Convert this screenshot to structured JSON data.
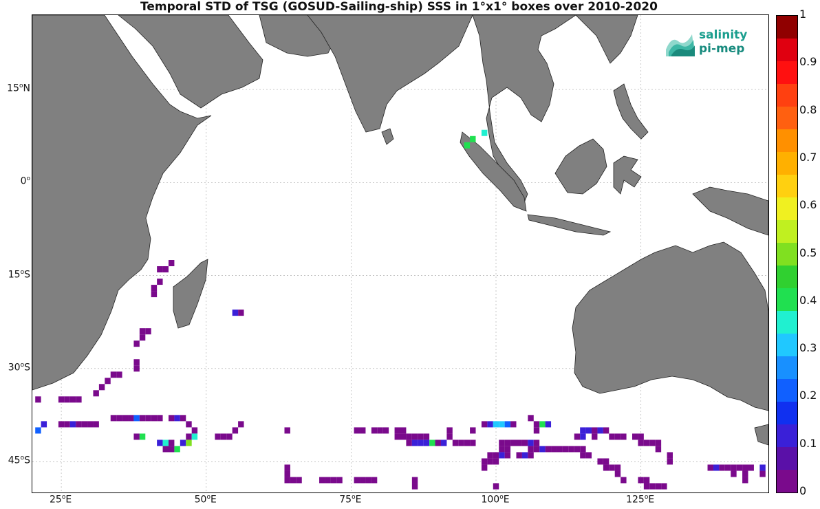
{
  "title": "Temporal STD of TSG (GOSUD-Sailing-ship) SSS in 1°x1° boxes over 2010-2020",
  "logo": {
    "line1": "salinity",
    "line2": "pi-mep"
  },
  "lat_labels": [
    {
      "deg": "15",
      "hemi": "N",
      "lat": 15
    },
    {
      "deg": "0",
      "hemi": "",
      "lat": 0
    },
    {
      "deg": "15",
      "hemi": "S",
      "lat": -15
    },
    {
      "deg": "30",
      "hemi": "S",
      "lat": -30
    },
    {
      "deg": "45",
      "hemi": "S",
      "lat": -45
    }
  ],
  "lon_labels": [
    {
      "deg": "25",
      "hemi": "E",
      "lon": 25
    },
    {
      "deg": "50",
      "hemi": "E",
      "lon": 50
    },
    {
      "deg": "75",
      "hemi": "E",
      "lon": 75
    },
    {
      "deg": "100",
      "hemi": "E",
      "lon": 100
    },
    {
      "deg": "125",
      "hemi": "E",
      "lon": 125
    }
  ],
  "extent": {
    "lon_min": 20,
    "lon_max": 147,
    "lat_min": -50,
    "lat_max": 27
  },
  "colorbar": {
    "min": 0,
    "max": 1,
    "ticks": [
      "0",
      "0.1",
      "0.2",
      "0.3",
      "0.4",
      "0.5",
      "0.6",
      "0.7",
      "0.8",
      "0.9",
      "1"
    ],
    "colors": [
      "#7a0a8c",
      "#5a10a8",
      "#3a20d8",
      "#1030f0",
      "#1060ff",
      "#1890ff",
      "#20c8ff",
      "#20f0d0",
      "#20e050",
      "#30d030",
      "#80e020",
      "#c0f020",
      "#f0f020",
      "#ffd010",
      "#ffb000",
      "#ff9000",
      "#ff6010",
      "#ff4010",
      "#ff1010",
      "#e00010",
      "#900000"
    ]
  },
  "land_color": "#808080",
  "cells": [
    {
      "lat": -14,
      "lon": 42,
      "v": 0.02
    },
    {
      "lat": -14,
      "lon": 43,
      "v": 0.02
    },
    {
      "lat": -13,
      "lon": 44,
      "v": 0.02
    },
    {
      "lat": -17,
      "lon": 41,
      "v": 0.02
    },
    {
      "lat": -16,
      "lon": 42,
      "v": 0.02
    },
    {
      "lat": -18,
      "lon": 41,
      "v": 0.02
    },
    {
      "lat": -21,
      "lon": 56,
      "v": 0.02
    },
    {
      "lat": -21,
      "lon": 55,
      "v": 0.12
    },
    {
      "lat": -24,
      "lon": 39,
      "v": 0.02
    },
    {
      "lat": -24,
      "lon": 40,
      "v": 0.02
    },
    {
      "lat": -25,
      "lon": 39,
      "v": 0.02
    },
    {
      "lat": -26,
      "lon": 38,
      "v": 0.02
    },
    {
      "lat": -29,
      "lon": 38,
      "v": 0.02
    },
    {
      "lat": -30,
      "lon": 38,
      "v": 0.02
    },
    {
      "lat": -31,
      "lon": 35,
      "v": 0.02
    },
    {
      "lat": -31,
      "lon": 34,
      "v": 0.02
    },
    {
      "lat": -32,
      "lon": 33,
      "v": 0.02
    },
    {
      "lat": -33,
      "lon": 32,
      "v": 0.02
    },
    {
      "lat": -34,
      "lon": 31,
      "v": 0.02
    },
    {
      "lat": -35,
      "lon": 21,
      "v": 0.02
    },
    {
      "lat": -35,
      "lon": 25,
      "v": 0.02
    },
    {
      "lat": -35,
      "lon": 26,
      "v": 0.02
    },
    {
      "lat": -35,
      "lon": 27,
      "v": 0.02
    },
    {
      "lat": -35,
      "lon": 28,
      "v": 0.02
    },
    {
      "lat": -38,
      "lon": 34,
      "v": 0.02
    },
    {
      "lat": -38,
      "lon": 35,
      "v": 0.02
    },
    {
      "lat": -38,
      "lon": 36,
      "v": 0.02
    },
    {
      "lat": -38,
      "lon": 37,
      "v": 0.02
    },
    {
      "lat": -38,
      "lon": 38,
      "v": 0.2
    },
    {
      "lat": -38,
      "lon": 39,
      "v": 0.02
    },
    {
      "lat": -38,
      "lon": 40,
      "v": 0.02
    },
    {
      "lat": -38,
      "lon": 41,
      "v": 0.02
    },
    {
      "lat": -38,
      "lon": 42,
      "v": 0.02
    },
    {
      "lat": -38,
      "lon": 44,
      "v": 0.02
    },
    {
      "lat": -38,
      "lon": 45,
      "v": 0.12
    },
    {
      "lat": -38,
      "lon": 46,
      "v": 0.02
    },
    {
      "lat": -39,
      "lon": 22,
      "v": 0.12
    },
    {
      "lat": -39,
      "lon": 25,
      "v": 0.02
    },
    {
      "lat": -39,
      "lon": 26,
      "v": 0.02
    },
    {
      "lat": -39,
      "lon": 27,
      "v": 0.12
    },
    {
      "lat": -39,
      "lon": 28,
      "v": 0.02
    },
    {
      "lat": -39,
      "lon": 29,
      "v": 0.02
    },
    {
      "lat": -39,
      "lon": 30,
      "v": 0.02
    },
    {
      "lat": -39,
      "lon": 31,
      "v": 0.02
    },
    {
      "lat": -39,
      "lon": 47,
      "v": 0.02
    },
    {
      "lat": -39,
      "lon": 56,
      "v": 0.02
    },
    {
      "lat": -40,
      "lon": 21,
      "v": 0.2
    },
    {
      "lat": -40,
      "lon": 48,
      "v": 0.02
    },
    {
      "lat": -40,
      "lon": 55,
      "v": 0.02
    },
    {
      "lat": -40,
      "lon": 64,
      "v": 0.02
    },
    {
      "lat": -41,
      "lon": 38,
      "v": 0.02
    },
    {
      "lat": -41,
      "lon": 39,
      "v": 0.4
    },
    {
      "lat": -41,
      "lon": 47,
      "v": 0.02
    },
    {
      "lat": -41,
      "lon": 48,
      "v": 0.35
    },
    {
      "lat": -41,
      "lon": 52,
      "v": 0.02
    },
    {
      "lat": -41,
      "lon": 53,
      "v": 0.02
    },
    {
      "lat": -41,
      "lon": 54,
      "v": 0.02
    },
    {
      "lat": -42,
      "lon": 42,
      "v": 0.12
    },
    {
      "lat": -42,
      "lon": 43,
      "v": 0.35
    },
    {
      "lat": -42,
      "lon": 44,
      "v": 0.02
    },
    {
      "lat": -42,
      "lon": 46,
      "v": 0.12
    },
    {
      "lat": -42,
      "lon": 47,
      "v": 0.5
    },
    {
      "lat": -43,
      "lon": 43,
      "v": 0.02
    },
    {
      "lat": -43,
      "lon": 44,
      "v": 0.02
    },
    {
      "lat": -43,
      "lon": 45,
      "v": 0.4
    },
    {
      "lat": -40,
      "lon": 76,
      "v": 0.02
    },
    {
      "lat": -40,
      "lon": 77,
      "v": 0.02
    },
    {
      "lat": -40,
      "lon": 79,
      "v": 0.02
    },
    {
      "lat": -40,
      "lon": 80,
      "v": 0.02
    },
    {
      "lat": -40,
      "lon": 81,
      "v": 0.02
    },
    {
      "lat": -40,
      "lon": 83,
      "v": 0.02
    },
    {
      "lat": -40,
      "lon": 84,
      "v": 0.02
    },
    {
      "lat": -40,
      "lon": 92,
      "v": 0.02
    },
    {
      "lat": -40,
      "lon": 96,
      "v": 0.02
    },
    {
      "lat": -41,
      "lon": 92,
      "v": 0.02
    },
    {
      "lat": -39,
      "lon": 98,
      "v": 0.02
    },
    {
      "lat": -39,
      "lon": 99,
      "v": 0.12
    },
    {
      "lat": -39,
      "lon": 100,
      "v": 0.3
    },
    {
      "lat": -39,
      "lon": 101,
      "v": 0.3
    },
    {
      "lat": -39,
      "lon": 102,
      "v": 0.2
    },
    {
      "lat": -39,
      "lon": 103,
      "v": 0.02
    },
    {
      "lat": -38,
      "lon": 106,
      "v": 0.02
    },
    {
      "lat": -39,
      "lon": 107,
      "v": 0.02
    },
    {
      "lat": -39,
      "lon": 108,
      "v": 0.4
    },
    {
      "lat": -39,
      "lon": 109,
      "v": 0.12
    },
    {
      "lat": -40,
      "lon": 107,
      "v": 0.02
    },
    {
      "lat": -41,
      "lon": 83,
      "v": 0.02
    },
    {
      "lat": -41,
      "lon": 84,
      "v": 0.02
    },
    {
      "lat": -41,
      "lon": 85,
      "v": 0.02
    },
    {
      "lat": -41,
      "lon": 86,
      "v": 0.02
    },
    {
      "lat": -41,
      "lon": 87,
      "v": 0.02
    },
    {
      "lat": -41,
      "lon": 88,
      "v": 0.02
    },
    {
      "lat": -42,
      "lon": 85,
      "v": 0.02
    },
    {
      "lat": -42,
      "lon": 86,
      "v": 0.12
    },
    {
      "lat": -42,
      "lon": 87,
      "v": 0.12
    },
    {
      "lat": -42,
      "lon": 88,
      "v": 0.12
    },
    {
      "lat": -42,
      "lon": 89,
      "v": 0.4
    },
    {
      "lat": -42,
      "lon": 90,
      "v": 0.02
    },
    {
      "lat": -42,
      "lon": 91,
      "v": 0.12
    },
    {
      "lat": -42,
      "lon": 93,
      "v": 0.02
    },
    {
      "lat": -42,
      "lon": 94,
      "v": 0.02
    },
    {
      "lat": -42,
      "lon": 95,
      "v": 0.02
    },
    {
      "lat": -42,
      "lon": 96,
      "v": 0.02
    },
    {
      "lat": -42,
      "lon": 101,
      "v": 0.02
    },
    {
      "lat": -42,
      "lon": 102,
      "v": 0.02
    },
    {
      "lat": -42,
      "lon": 103,
      "v": 0.02
    },
    {
      "lat": -42,
      "lon": 104,
      "v": 0.02
    },
    {
      "lat": -42,
      "lon": 105,
      "v": 0.02
    },
    {
      "lat": -42,
      "lon": 106,
      "v": 0.12
    },
    {
      "lat": -42,
      "lon": 107,
      "v": 0.02
    },
    {
      "lat": -43,
      "lon": 101,
      "v": 0.02
    },
    {
      "lat": -43,
      "lon": 102,
      "v": 0.02
    },
    {
      "lat": -43,
      "lon": 106,
      "v": 0.02
    },
    {
      "lat": -43,
      "lon": 107,
      "v": 0.02
    },
    {
      "lat": -43,
      "lon": 108,
      "v": 0.12
    },
    {
      "lat": -43,
      "lon": 109,
      "v": 0.02
    },
    {
      "lat": -43,
      "lon": 110,
      "v": 0.02
    },
    {
      "lat": -43,
      "lon": 111,
      "v": 0.02
    },
    {
      "lat": -43,
      "lon": 112,
      "v": 0.02
    },
    {
      "lat": -43,
      "lon": 113,
      "v": 0.02
    },
    {
      "lat": -43,
      "lon": 114,
      "v": 0.02
    },
    {
      "lat": -43,
      "lon": 115,
      "v": 0.02
    },
    {
      "lat": -44,
      "lon": 99,
      "v": 0.02
    },
    {
      "lat": -44,
      "lon": 100,
      "v": 0.02
    },
    {
      "lat": -44,
      "lon": 101,
      "v": 0.12
    },
    {
      "lat": -44,
      "lon": 102,
      "v": 0.02
    },
    {
      "lat": -44,
      "lon": 104,
      "v": 0.02
    },
    {
      "lat": -44,
      "lon": 105,
      "v": 0.12
    },
    {
      "lat": -44,
      "lon": 106,
      "v": 0.02
    },
    {
      "lat": -44,
      "lon": 115,
      "v": 0.02
    },
    {
      "lat": -44,
      "lon": 116,
      "v": 0.02
    },
    {
      "lat": -40,
      "lon": 115,
      "v": 0.12
    },
    {
      "lat": -40,
      "lon": 116,
      "v": 0.12
    },
    {
      "lat": -40,
      "lon": 117,
      "v": 0.02
    },
    {
      "lat": -40,
      "lon": 118,
      "v": 0.12
    },
    {
      "lat": -40,
      "lon": 119,
      "v": 0.02
    },
    {
      "lat": -41,
      "lon": 114,
      "v": 0.02
    },
    {
      "lat": -41,
      "lon": 115,
      "v": 0.12
    },
    {
      "lat": -41,
      "lon": 117,
      "v": 0.02
    },
    {
      "lat": -41,
      "lon": 120,
      "v": 0.02
    },
    {
      "lat": -41,
      "lon": 121,
      "v": 0.02
    },
    {
      "lat": -41,
      "lon": 122,
      "v": 0.02
    },
    {
      "lat": -41,
      "lon": 124,
      "v": 0.02
    },
    {
      "lat": -41,
      "lon": 125,
      "v": 0.02
    },
    {
      "lat": -42,
      "lon": 125,
      "v": 0.02
    },
    {
      "lat": -42,
      "lon": 126,
      "v": 0.02
    },
    {
      "lat": -42,
      "lon": 127,
      "v": 0.02
    },
    {
      "lat": -42,
      "lon": 128,
      "v": 0.02
    },
    {
      "lat": -43,
      "lon": 128,
      "v": 0.02
    },
    {
      "lat": -44,
      "lon": 130,
      "v": 0.02
    },
    {
      "lat": -45,
      "lon": 130,
      "v": 0.02
    },
    {
      "lat": -45,
      "lon": 118,
      "v": 0.02
    },
    {
      "lat": -45,
      "lon": 119,
      "v": 0.02
    },
    {
      "lat": -46,
      "lon": 119,
      "v": 0.02
    },
    {
      "lat": -46,
      "lon": 120,
      "v": 0.02
    },
    {
      "lat": -46,
      "lon": 121,
      "v": 0.02
    },
    {
      "lat": -47,
      "lon": 121,
      "v": 0.02
    },
    {
      "lat": -48,
      "lon": 122,
      "v": 0.02
    },
    {
      "lat": -45,
      "lon": 98,
      "v": 0.02
    },
    {
      "lat": -45,
      "lon": 99,
      "v": 0.02
    },
    {
      "lat": -45,
      "lon": 100,
      "v": 0.02
    },
    {
      "lat": -46,
      "lon": 98,
      "v": 0.02
    },
    {
      "lat": -46,
      "lon": 64,
      "v": 0.02
    },
    {
      "lat": -47,
      "lon": 64,
      "v": 0.02
    },
    {
      "lat": -48,
      "lon": 64,
      "v": 0.02
    },
    {
      "lat": -48,
      "lon": 65,
      "v": 0.02
    },
    {
      "lat": -48,
      "lon": 66,
      "v": 0.02
    },
    {
      "lat": -49,
      "lon": 100,
      "v": 0.02
    },
    {
      "lat": -48,
      "lon": 70,
      "v": 0.02
    },
    {
      "lat": -48,
      "lon": 71,
      "v": 0.02
    },
    {
      "lat": -48,
      "lon": 72,
      "v": 0.02
    },
    {
      "lat": -48,
      "lon": 73,
      "v": 0.02
    },
    {
      "lat": -48,
      "lon": 76,
      "v": 0.02
    },
    {
      "lat": -48,
      "lon": 77,
      "v": 0.02
    },
    {
      "lat": -48,
      "lon": 78,
      "v": 0.02
    },
    {
      "lat": -48,
      "lon": 79,
      "v": 0.02
    },
    {
      "lat": -48,
      "lon": 86,
      "v": 0.02
    },
    {
      "lat": -49,
      "lon": 86,
      "v": 0.02
    },
    {
      "lat": -48,
      "lon": 125,
      "v": 0.02
    },
    {
      "lat": -48,
      "lon": 126,
      "v": 0.02
    },
    {
      "lat": -49,
      "lon": 126,
      "v": 0.02
    },
    {
      "lat": -49,
      "lon": 127,
      "v": 0.02
    },
    {
      "lat": -49,
      "lon": 128,
      "v": 0.02
    },
    {
      "lat": -49,
      "lon": 129,
      "v": 0.02
    },
    {
      "lat": -46,
      "lon": 137,
      "v": 0.02
    },
    {
      "lat": -46,
      "lon": 138,
      "v": 0.12
    },
    {
      "lat": -46,
      "lon": 139,
      "v": 0.02
    },
    {
      "lat": -46,
      "lon": 140,
      "v": 0.02
    },
    {
      "lat": -46,
      "lon": 141,
      "v": 0.02
    },
    {
      "lat": -46,
      "lon": 142,
      "v": 0.02
    },
    {
      "lat": -46,
      "lon": 143,
      "v": 0.02
    },
    {
      "lat": -46,
      "lon": 144,
      "v": 0.02
    },
    {
      "lat": -46,
      "lon": 146,
      "v": 0.12
    },
    {
      "lat": -47,
      "lon": 141,
      "v": 0.02
    },
    {
      "lat": -47,
      "lon": 143,
      "v": 0.02
    },
    {
      "lat": -47,
      "lon": 146,
      "v": 0.02
    },
    {
      "lat": -48,
      "lon": 143,
      "v": 0.02
    },
    {
      "lat": 8,
      "lon": 98,
      "v": 0.35
    },
    {
      "lat": 7,
      "lon": 96,
      "v": 0.4
    },
    {
      "lat": 6,
      "lon": 95,
      "v": 0.4
    }
  ]
}
